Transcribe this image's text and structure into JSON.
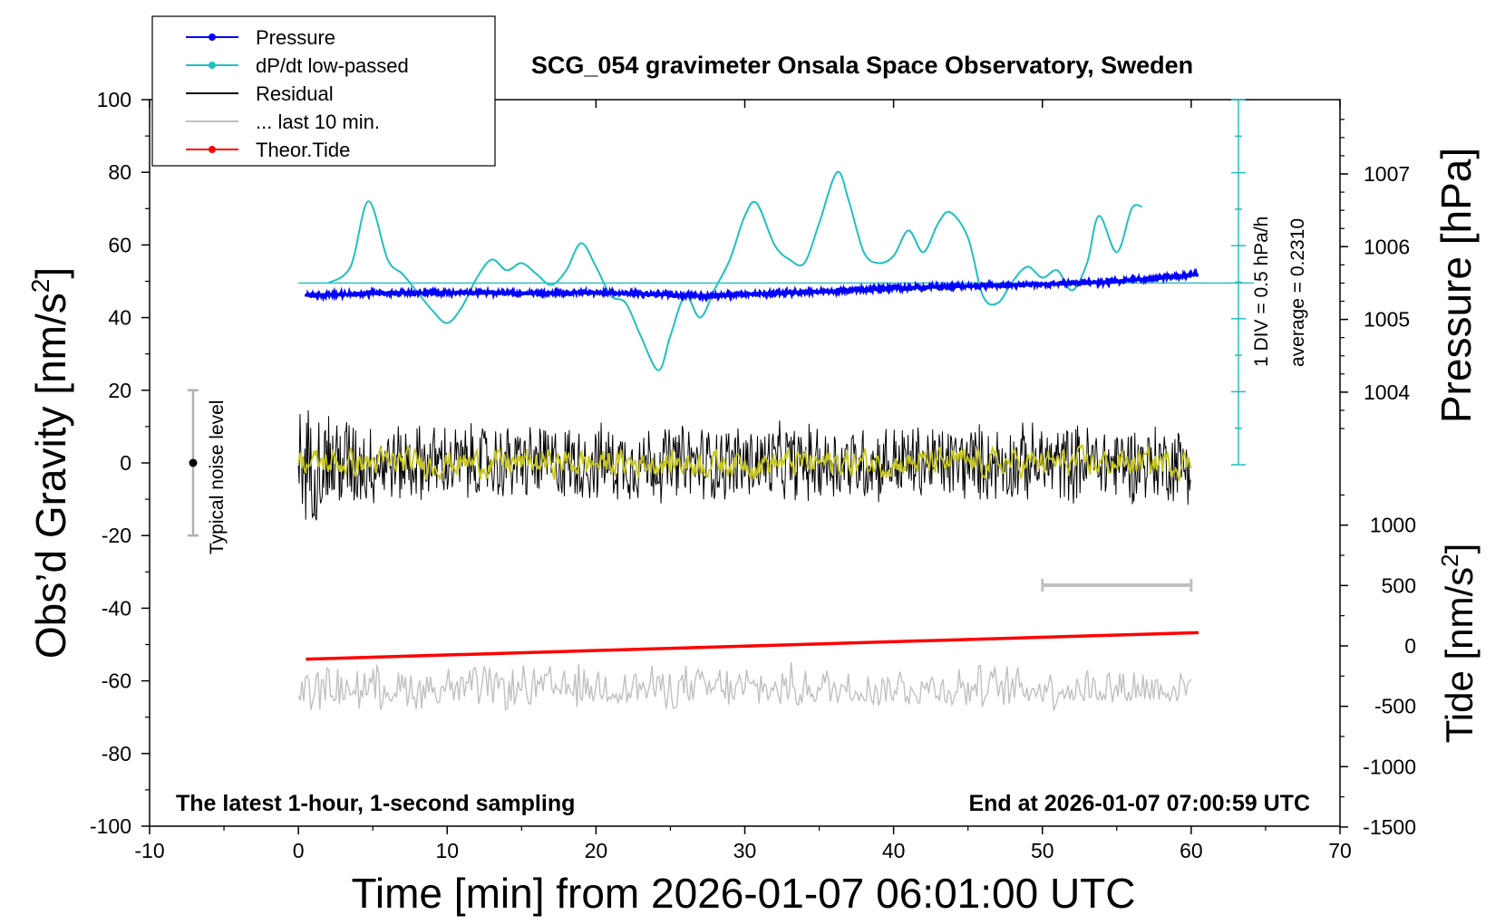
{
  "chart_data": {
    "type": "line",
    "title": "SCG_054 gravimeter Onsala Space Observatory, Sweden",
    "xlabel": "Time [min] from 2026-01-07 06:01:00 UTC",
    "ylabel": "Obs’d Gravity [nm/s²]",
    "ylabel_main": "Obs’d Gravity [nm/s",
    "ylabel_close": "]",
    "y2label": "Pressure [hPa]",
    "y3label_main": "Tide [nm/s",
    "y3label_close": "]",
    "superscript": "2",
    "xlim": [
      -10,
      70
    ],
    "ylim": [
      -100,
      100
    ],
    "xticks": [
      "-10",
      "0",
      "10",
      "20",
      "30",
      "40",
      "50",
      "60",
      "70"
    ],
    "yticks": [
      "100",
      "80",
      "60",
      "40",
      "20",
      "0",
      "-20",
      "-40",
      "-60",
      "-80",
      "-100"
    ],
    "pressure_ticks": [
      "1007",
      "1006",
      "1005",
      "1004"
    ],
    "pressure_tick_values": [
      1007,
      1006,
      1005,
      1004
    ],
    "tide_ticks": [
      "1000",
      "500",
      "0",
      "-500",
      "-1000",
      "-1500"
    ],
    "tide_tick_values": [
      1000,
      500,
      0,
      -500,
      -1000,
      -1500
    ],
    "footer_left": "The latest 1-hour, 1-second sampling",
    "footer_right": "End at 2026-01-07 07:00:59 UTC",
    "noise_label": "Typical noise level",
    "noise_range": [
      -20,
      20
    ],
    "div_label": "1 DIV = 0.5 hPa/h",
    "average_label": "average = 0.2310",
    "legend_position": "top-left",
    "legend": [
      {
        "label": "Pressure",
        "color": "#0000ff",
        "marker": true
      },
      {
        "label": "dP/dt low-passed",
        "color": "#20c0c0",
        "marker": true
      },
      {
        "label": "Residual",
        "color": "#000000",
        "marker": false
      },
      {
        "label": "... last 10 min.",
        "color": "#c0c0c0",
        "marker": false
      },
      {
        "label": "Theor.Tide",
        "color": "#ff0000",
        "marker": true
      }
    ],
    "last10_bar": [
      50,
      60
    ],
    "series": [
      {
        "name": "Pressure",
        "axis": "pressure",
        "color": "#0000ff",
        "x": [
          0.5,
          5,
          10,
          15,
          20,
          25,
          28,
          30,
          35,
          40,
          45,
          50,
          55,
          60.5
        ],
        "values": [
          1005.33,
          1005.36,
          1005.37,
          1005.36,
          1005.37,
          1005.34,
          1005.32,
          1005.35,
          1005.38,
          1005.43,
          1005.46,
          1005.48,
          1005.52,
          1005.62
        ]
      },
      {
        "name": "dP/dt low-passed",
        "axis": "gravity",
        "color": "#20c0c0",
        "x": [
          2,
          3.5,
          4.7,
          6,
          7,
          8,
          9,
          10,
          11,
          12,
          13,
          14,
          15,
          16,
          17,
          18,
          19,
          20,
          21,
          22,
          23,
          24.2,
          25,
          26,
          27,
          28,
          29,
          30,
          30.8,
          32,
          33,
          34,
          35,
          36.2,
          37,
          38,
          39,
          40,
          41,
          42,
          43,
          43.8,
          45,
          46,
          47,
          48,
          49,
          50,
          51,
          52,
          53,
          53.8,
          55,
          56,
          56.7
        ],
        "values": [
          49.5,
          54,
          72,
          56,
          52,
          47,
          42,
          38.5,
          43,
          51,
          56,
          53,
          55,
          52,
          49,
          53,
          60.5,
          54,
          46,
          44,
          35,
          25.5,
          35,
          46,
          40,
          48,
          56,
          68,
          71.5,
          60,
          56,
          55,
          66,
          80,
          72,
          58,
          55,
          57,
          64,
          58,
          66,
          69,
          62,
          46,
          44,
          50,
          54,
          51,
          53,
          47.5,
          55,
          68,
          58,
          70,
          70.5
        ]
      },
      {
        "name": "Residual",
        "axis": "gravity",
        "color": "#000000",
        "x_range": [
          0,
          60
        ],
        "noise_amplitude": 12,
        "values": []
      },
      {
        "name": "Residual smoothed",
        "axis": "gravity",
        "color": "#c8c820",
        "x_range": [
          0,
          60
        ],
        "noise_amplitude": 3,
        "values": []
      },
      {
        "name": "... last 10 min.",
        "axis": "gravity",
        "color": "#c0c0c0",
        "x_range": [
          0,
          60
        ],
        "center": -63,
        "noise_amplitude": 7,
        "values": []
      },
      {
        "name": "Theor.Tide",
        "axis": "tide",
        "color": "#ff0000",
        "x": [
          0.5,
          60.5
        ],
        "values": [
          -110,
          110
        ]
      }
    ],
    "reference_line_pressure": 1005.5
  }
}
